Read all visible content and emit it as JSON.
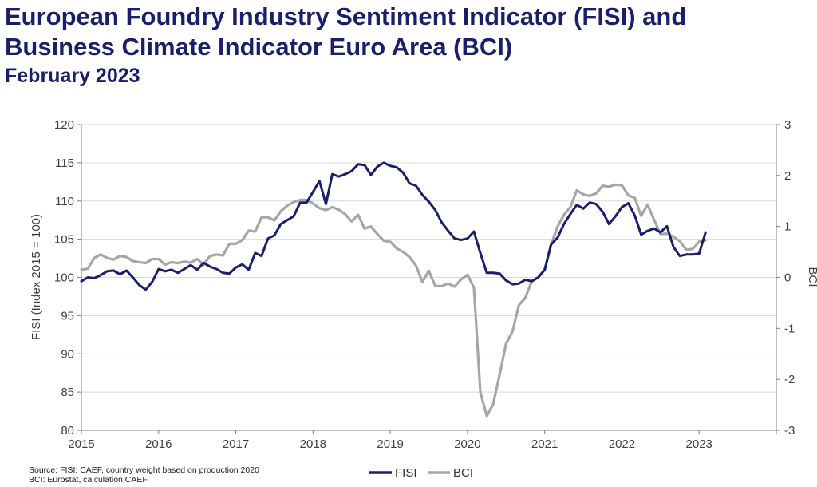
{
  "header": {
    "title_line1": "European Foundry Industry Sentiment Indicator (FISI) and",
    "title_line2": "Business Climate Indicator Euro Area (BCI)",
    "subtitle": "February 2023"
  },
  "footer": {
    "source_line1": "Source: FISI: CAEF, country weight based on production 2020",
    "source_line2": "BCI: Eurostat, calculation CAEF"
  },
  "colors": {
    "fisi": "#1a1f6b",
    "bci": "#a6a6a6",
    "grid": "#d9d9d9",
    "axis": "#7f7f7f"
  },
  "chart_data": {
    "type": "line",
    "ylabel": "FISI (Index 2015 = 100)",
    "y2label": "BCI",
    "ylim": [
      80,
      120
    ],
    "y2lim": [
      -3,
      3
    ],
    "xlim": [
      2015,
      2024
    ],
    "x_ticks": [
      "2015",
      "2016",
      "2017",
      "2018",
      "2019",
      "2020",
      "2021",
      "2022",
      "2023"
    ],
    "y_ticks": [
      "80",
      "85",
      "90",
      "95",
      "100",
      "105",
      "110",
      "115",
      "120"
    ],
    "y2_ticks": [
      "-3",
      "-2",
      "-1",
      "0",
      "1",
      "2",
      "3"
    ],
    "grid": true,
    "legend": "bottom-center",
    "series": [
      {
        "name": "FISI",
        "axis": "left",
        "color": "#1a1f6b",
        "x_start": "2015-01",
        "values": [
          99.5,
          100.0,
          99.9,
          100.3,
          100.8,
          100.9,
          100.4,
          100.9,
          100.0,
          99.0,
          98.4,
          99.4,
          101.1,
          100.8,
          101.0,
          100.6,
          101.1,
          101.6,
          101.0,
          101.9,
          101.4,
          101.1,
          100.6,
          100.5,
          101.3,
          101.7,
          101.0,
          103.2,
          102.8,
          105.1,
          105.5,
          107.0,
          107.5,
          108.0,
          109.8,
          109.8,
          111.2,
          112.6,
          109.6,
          113.5,
          113.2,
          113.5,
          113.9,
          114.8,
          114.7,
          113.4,
          114.5,
          115.0,
          114.6,
          114.4,
          113.7,
          112.3,
          112.0,
          110.8,
          109.9,
          108.8,
          107.2,
          106.1,
          105.1,
          104.9,
          105.1,
          106.0,
          103.2,
          100.6,
          100.6,
          100.5,
          99.6,
          99.1,
          99.2,
          99.7,
          99.5,
          100.0,
          101.0,
          104.3,
          105.2,
          107.0,
          108.3,
          109.5,
          109.0,
          109.8,
          109.6,
          108.6,
          107.0,
          108.0,
          109.2,
          109.7,
          108.1,
          105.6,
          106.1,
          106.4,
          105.9,
          106.7,
          104.0,
          102.8,
          103.0,
          103.0,
          103.1,
          105.9
        ]
      },
      {
        "name": "BCI",
        "axis": "right",
        "color": "#a6a6a6",
        "x_start": "2015-01",
        "values": [
          0.15,
          0.17,
          0.38,
          0.45,
          0.38,
          0.35,
          0.42,
          0.4,
          0.32,
          0.3,
          0.28,
          0.36,
          0.36,
          0.25,
          0.3,
          0.28,
          0.31,
          0.29,
          0.36,
          0.25,
          0.42,
          0.45,
          0.43,
          0.66,
          0.66,
          0.73,
          0.92,
          0.9,
          1.18,
          1.18,
          1.12,
          1.3,
          1.41,
          1.48,
          1.52,
          1.52,
          1.45,
          1.36,
          1.32,
          1.38,
          1.33,
          1.24,
          1.1,
          1.23,
          0.96,
          1.0,
          0.85,
          0.72,
          0.7,
          0.57,
          0.5,
          0.4,
          0.23,
          -0.09,
          0.13,
          -0.17,
          -0.17,
          -0.12,
          -0.18,
          -0.04,
          0.05,
          -0.2,
          -2.25,
          -2.72,
          -2.49,
          -1.91,
          -1.3,
          -1.06,
          -0.54,
          -0.4,
          -0.07,
          0.0,
          0.15,
          0.64,
          1.0,
          1.23,
          1.38,
          1.71,
          1.63,
          1.6,
          1.65,
          1.8,
          1.78,
          1.82,
          1.81,
          1.61,
          1.56,
          1.21,
          1.43,
          1.13,
          0.85,
          0.86,
          0.8,
          0.71,
          0.54,
          0.56,
          0.7,
          0.73
        ]
      }
    ]
  }
}
